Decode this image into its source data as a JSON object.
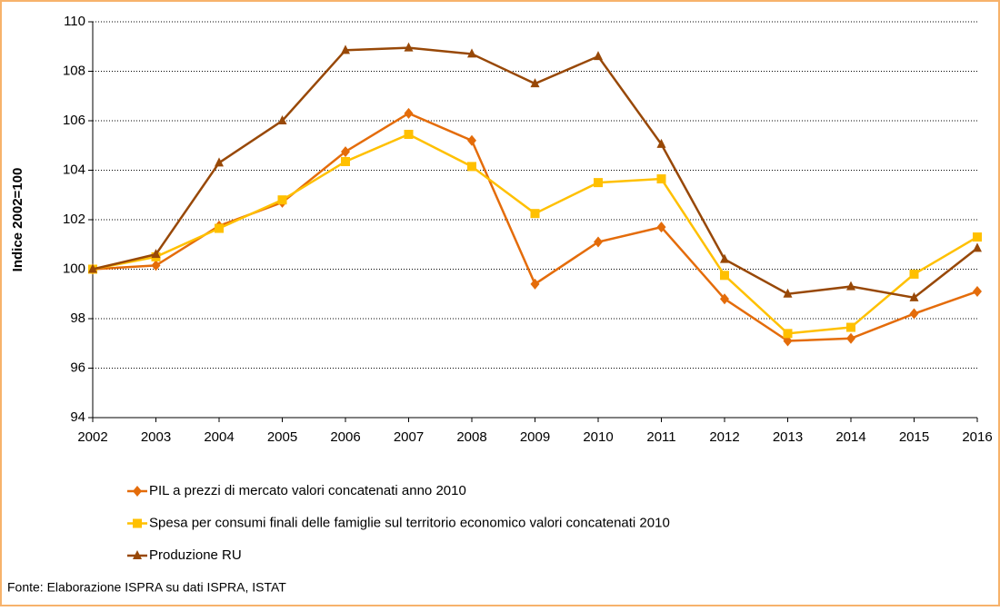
{
  "chart_data": {
    "type": "line",
    "y_label": "Indice 2002=100",
    "categories": [
      "2002",
      "2003",
      "2004",
      "2005",
      "2006",
      "2007",
      "2008",
      "2009",
      "2010",
      "2011",
      "2012",
      "2013",
      "2014",
      "2015",
      "2016"
    ],
    "series": [
      {
        "name": "PIL a prezzi di mercato valori concatenati anno 2010",
        "color": "#e46c0a",
        "marker": "diamond",
        "values": [
          100,
          100.15,
          101.75,
          102.7,
          104.75,
          106.3,
          105.2,
          99.4,
          101.1,
          101.7,
          98.8,
          97.1,
          97.2,
          98.2,
          99.1
        ]
      },
      {
        "name": "Spesa per consumi finali delle famiglie sul territorio economico valori concatenati 2010",
        "color": "#ffc000",
        "marker": "square",
        "values": [
          100,
          100.5,
          101.65,
          102.8,
          104.35,
          105.45,
          104.15,
          102.25,
          103.5,
          103.65,
          99.75,
          97.4,
          97.65,
          99.8,
          101.3
        ]
      },
      {
        "name": "Produzione RU",
        "color": "#984807",
        "marker": "triangle",
        "values": [
          100,
          100.6,
          104.3,
          106.0,
          108.85,
          108.95,
          108.7,
          107.5,
          108.6,
          105.05,
          100.4,
          99.0,
          99.3,
          98.85,
          100.85
        ]
      }
    ],
    "ylim": [
      94,
      110
    ],
    "yticks": [
      94,
      96,
      98,
      100,
      102,
      104,
      106,
      108,
      110
    ],
    "grid": true,
    "legend": "bottom",
    "source": "Fonte: Elaborazione ISPRA su dati ISPRA, ISTAT"
  }
}
